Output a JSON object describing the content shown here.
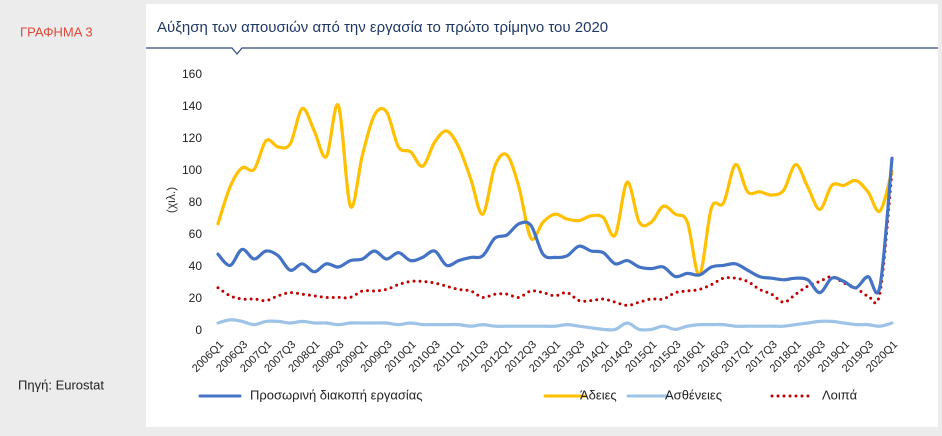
{
  "chart_data": {
    "type": "line",
    "figure_label": "ΓΡΑΦΗΜΑ 3",
    "source": "Πηγή: Eurostat",
    "title": "Αύξηση των απουσιών από την εργασία το πρώτο τρίμηνο του 2020",
    "y_label": "(χιλ.)",
    "categories": [
      "2006Q1",
      null,
      "2006Q3",
      null,
      "2007Q1",
      null,
      "2007Q3",
      null,
      "2008Q1",
      null,
      "2008Q3",
      null,
      "2009Q1",
      null,
      "2009Q3",
      null,
      "2010Q1",
      null,
      "2010Q3",
      null,
      "2011Q1",
      null,
      "2011Q3",
      null,
      "2012Q1",
      null,
      "2012Q3",
      null,
      "2013Q1",
      null,
      "2013Q3",
      null,
      "2014Q1",
      null,
      "2014Q3",
      null,
      "2015Q1",
      null,
      "2015Q3",
      null,
      "2016Q1",
      null,
      "2016Q3",
      null,
      "2017Q1",
      null,
      "2017Q3",
      null,
      "2018Q1",
      null,
      "2018Q3",
      null,
      "2019Q1",
      null,
      "2019Q3",
      null,
      "2020Q1"
    ],
    "ylim": [
      0,
      160
    ],
    "yticks": [
      0,
      20,
      40,
      60,
      80,
      100,
      120,
      140,
      160
    ],
    "grid": false,
    "series": [
      {
        "name": "Προσωρινή διακοπή εργασίας",
        "color": "#4472c4",
        "dash": false,
        "values": [
          48,
          41,
          51,
          45,
          50,
          47,
          38,
          42,
          37,
          42,
          40,
          44,
          45,
          50,
          45,
          49,
          44,
          46,
          50,
          41,
          44,
          46,
          47,
          58,
          60,
          67,
          66,
          48,
          46,
          47,
          53,
          50,
          49,
          42,
          44,
          40,
          39,
          40,
          34,
          36,
          35,
          40,
          41,
          42,
          38,
          34,
          33,
          32,
          33,
          32,
          24,
          33,
          31,
          27,
          34,
          28,
          108
        ]
      },
      {
        "name": "Άδειες",
        "color": "#ffc000",
        "dash": false,
        "values": [
          67,
          90,
          102,
          101,
          119,
          115,
          117,
          139,
          125,
          109,
          141,
          78,
          110,
          135,
          137,
          115,
          112,
          103,
          118,
          125,
          115,
          95,
          73,
          103,
          110,
          90,
          58,
          68,
          73,
          70,
          69,
          72,
          71,
          60,
          93,
          68,
          68,
          78,
          73,
          68,
          35,
          77,
          80,
          104,
          87,
          87,
          85,
          88,
          104,
          90,
          76,
          91,
          91,
          94,
          87,
          75,
          100
        ]
      },
      {
        "name": "Ασθένειες",
        "color": "#9dc3e6",
        "dash": false,
        "values": [
          5,
          7,
          6,
          4,
          6,
          6,
          5,
          6,
          5,
          5,
          4,
          5,
          5,
          5,
          5,
          4,
          5,
          4,
          4,
          4,
          4,
          3,
          4,
          3,
          3,
          3,
          3,
          3,
          3,
          4,
          3,
          2,
          1,
          1,
          5,
          1,
          1,
          3,
          1,
          3,
          4,
          4,
          4,
          3,
          3,
          3,
          3,
          3,
          4,
          5,
          6,
          6,
          5,
          4,
          4,
          3,
          5
        ]
      },
      {
        "name": "Λοιπά",
        "color": "#c00000",
        "dash": true,
        "values": [
          27,
          22,
          20,
          20,
          19,
          22,
          24,
          23,
          22,
          21,
          21,
          21,
          25,
          25,
          26,
          29,
          31,
          31,
          30,
          28,
          26,
          25,
          21,
          23,
          23,
          21,
          25,
          24,
          22,
          24,
          19,
          19,
          20,
          18,
          16,
          18,
          20,
          20,
          24,
          25,
          26,
          29,
          33,
          33,
          31,
          26,
          23,
          18,
          23,
          28,
          31,
          34,
          30,
          27,
          22,
          24,
          100
        ]
      }
    ]
  }
}
